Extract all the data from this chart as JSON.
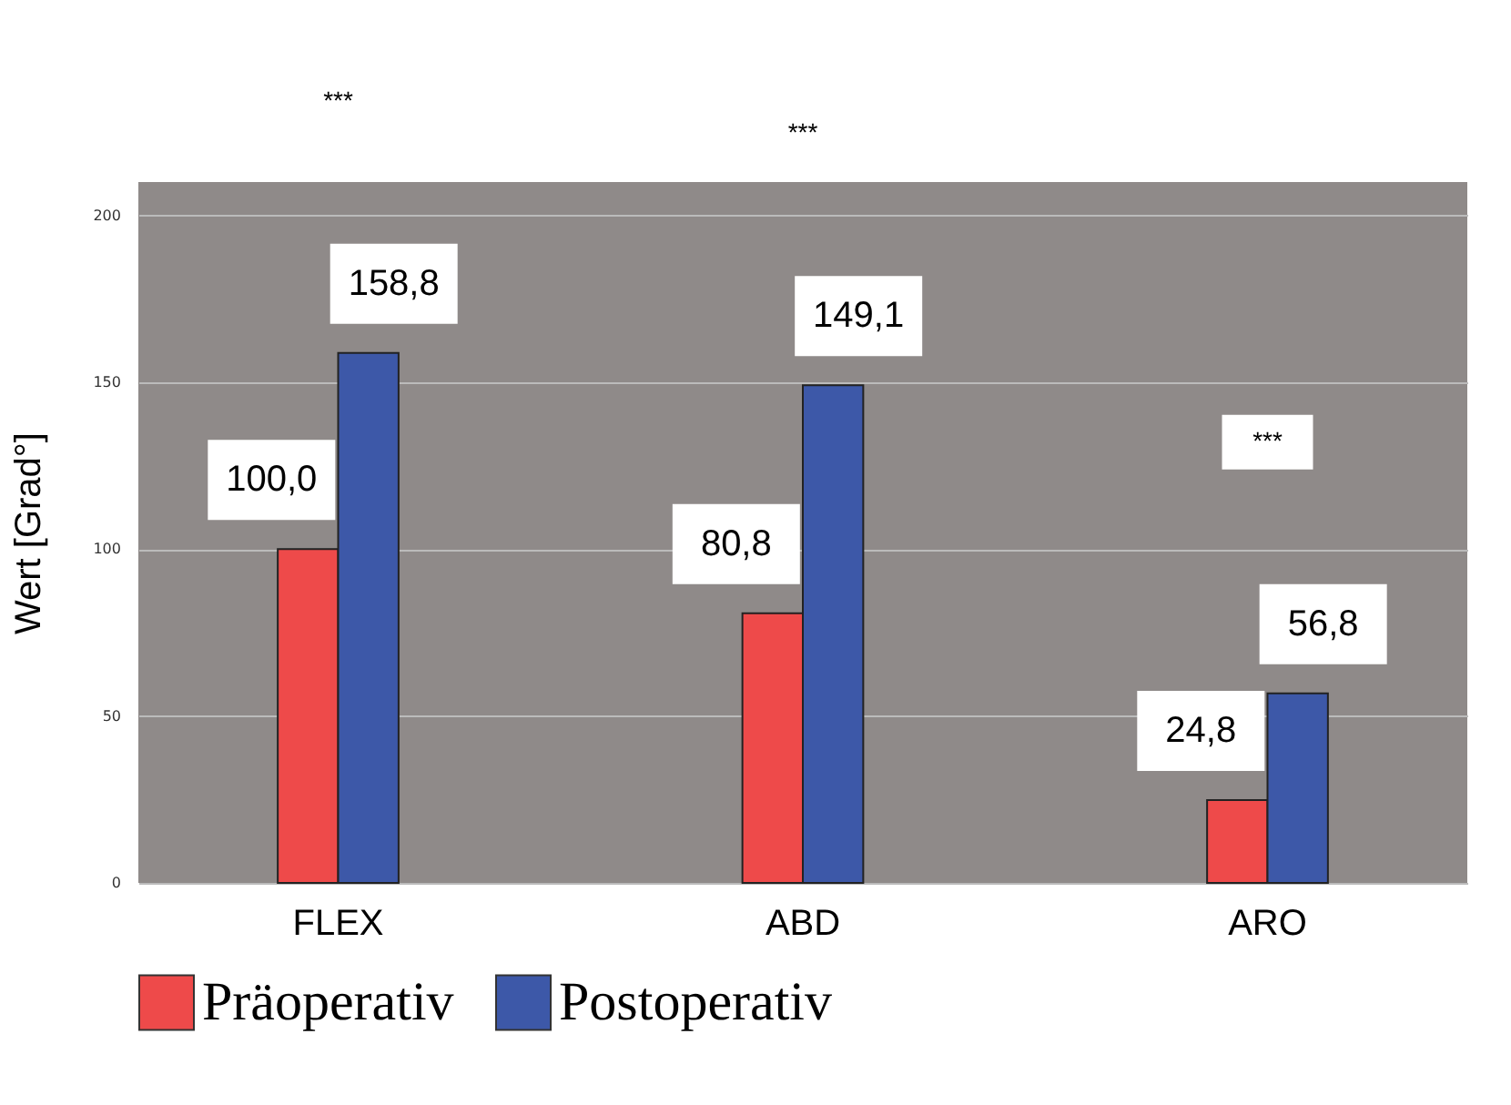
{
  "chart_data": {
    "type": "bar",
    "ylabel": "Wert [Grad°]",
    "categories": [
      "FLEX",
      "ABD",
      "ARO"
    ],
    "series": [
      {
        "name": "Präoperativ",
        "color": "#ee4a4a",
        "values": [
          100.0,
          80.8,
          24.8
        ],
        "value_labels": [
          "100,0",
          "80,8",
          "24,8"
        ]
      },
      {
        "name": "Postoperativ",
        "color": "#3d58a8",
        "values": [
          158.8,
          149.1,
          56.8
        ],
        "value_labels": [
          "158,8",
          "149,1",
          "56,8"
        ]
      }
    ],
    "ylim": [
      0,
      210
    ],
    "yticks": [
      0,
      50,
      100,
      150,
      200
    ],
    "grid": "y",
    "legend": "bottom",
    "annotations": [
      "***",
      "***",
      "***"
    ]
  }
}
